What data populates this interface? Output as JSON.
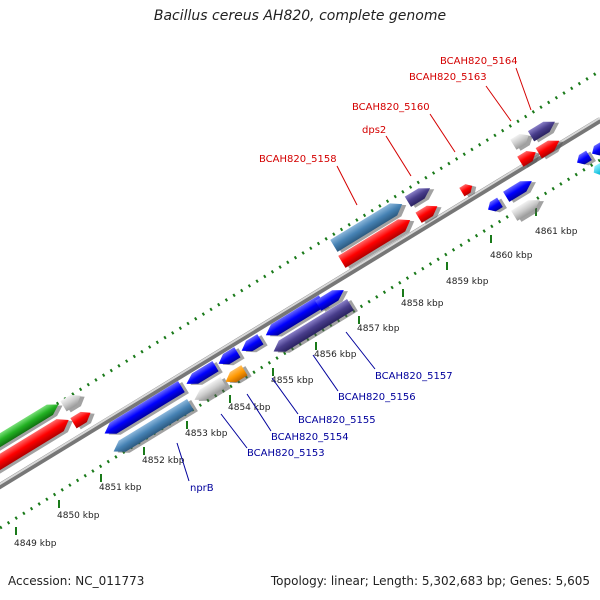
{
  "title": "Bacillus cereus AH820, complete genome",
  "footer": {
    "accession": "Accession: NC_011773",
    "summary": "Topology: linear; Length: 5,302,683 bp; Genes: 5,605"
  },
  "colors": {
    "backbone": "#9a9a9a",
    "ruler_dots": "#1a7a1a",
    "forward_label": "#d40000",
    "reverse_label": "#00009c"
  },
  "ruler": [
    {
      "label": "4849 kbp"
    },
    {
      "label": "4850 kbp"
    },
    {
      "label": "4851 kbp"
    },
    {
      "label": "4852 kbp"
    },
    {
      "label": "4853 kbp"
    },
    {
      "label": "4854 kbp"
    },
    {
      "label": "4855 kbp"
    },
    {
      "label": "4856 kbp"
    },
    {
      "label": "4857 kbp"
    },
    {
      "label": "4858 kbp"
    },
    {
      "label": "4859 kbp"
    },
    {
      "label": "4860 kbp"
    },
    {
      "label": "4861 kbp"
    }
  ],
  "gene_labels_forward": [
    {
      "id": "lbl-5158",
      "text": "BCAH820_5158"
    },
    {
      "id": "lbl-dps2",
      "text": "dps2"
    },
    {
      "id": "lbl-5160",
      "text": "BCAH820_5160"
    },
    {
      "id": "lbl-5163",
      "text": "BCAH820_5163"
    },
    {
      "id": "lbl-5164",
      "text": "BCAH820_5164"
    }
  ],
  "gene_labels_reverse": [
    {
      "id": "lbl-nprB",
      "text": "nprB"
    },
    {
      "id": "lbl-5153",
      "text": "BCAH820_5153"
    },
    {
      "id": "lbl-5154",
      "text": "BCAH820_5154"
    },
    {
      "id": "lbl-5155",
      "text": "BCAH820_5155"
    },
    {
      "id": "lbl-5156",
      "text": "BCAH820_5156"
    },
    {
      "id": "lbl-5157",
      "text": "BCAH820_5157"
    }
  ]
}
